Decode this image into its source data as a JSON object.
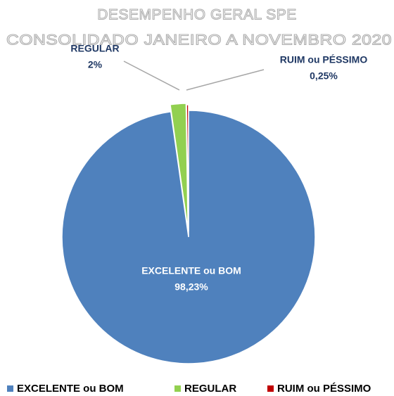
{
  "chart_data": {
    "type": "pie",
    "title": "DESEMPENHO GERAL SPE",
    "subtitle": "CONSOLIDADO JANEIRO A NOVEMBRO 2020",
    "categories": [
      "EXCELENTE ou BOM",
      "REGULAR",
      "RUIM ou PÉSSIMO"
    ],
    "values": [
      98.23,
      2,
      0.25
    ],
    "value_labels": [
      "98,23%",
      "2%",
      "0,25%"
    ],
    "colors": [
      "#4f81bd",
      "#92d050",
      "#c00000"
    ],
    "legend": "bottom"
  }
}
